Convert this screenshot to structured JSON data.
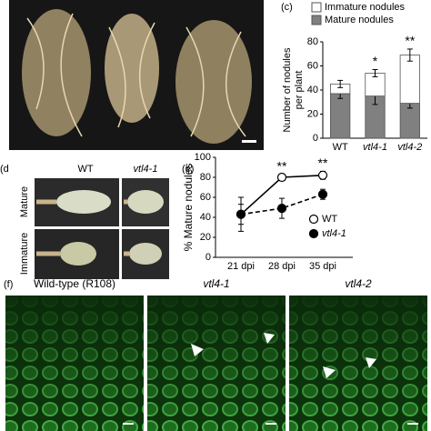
{
  "panels": {
    "c_label": "(c)",
    "d_label": "(d",
    "e_label": "(e)",
    "f_label": "(f)"
  },
  "panel_d": {
    "columns": [
      "WT",
      "vtl4-1"
    ],
    "rows": [
      "Mature",
      "Immature"
    ]
  },
  "panel_f": {
    "titles": [
      "Wild-type (R108)",
      "vtl4-1",
      "vtl4-2"
    ]
  },
  "chart_data": [
    {
      "type": "bar",
      "stacked": true,
      "ylabel": [
        "Number of nodules",
        "per plant"
      ],
      "categories": [
        "WT",
        "vtl4-1",
        "vtl4-2"
      ],
      "series": [
        {
          "name": "Mature nodules",
          "color": "#808080",
          "values": [
            37,
            35,
            29
          ],
          "errors": [
            4,
            7,
            4
          ]
        },
        {
          "name": "Immature nodules",
          "color": "#ffffff",
          "values": [
            8,
            19,
            40
          ],
          "errors": [
            3,
            3,
            5
          ]
        }
      ],
      "annotations": [
        {
          "category": "vtl4-1",
          "text": "*"
        },
        {
          "category": "vtl4-2",
          "text": "**"
        }
      ],
      "ylim": [
        0,
        80
      ],
      "yticks": [
        0,
        20,
        40,
        60,
        80
      ]
    },
    {
      "type": "line",
      "ylabel": "% Mature nodules",
      "categories": [
        "21 dpi",
        "28 dpi",
        "35 dpi"
      ],
      "series": [
        {
          "name": "WT",
          "color": "#000000",
          "marker": "open",
          "linestyle": "solid",
          "values": [
            43,
            80,
            82
          ],
          "errors": [
            17,
            3,
            4
          ]
        },
        {
          "name": "vtl4-1",
          "color": "#000000",
          "marker": "filled",
          "linestyle": "dashed",
          "values": [
            43,
            49,
            63
          ],
          "errors": [
            10,
            10,
            5
          ]
        }
      ],
      "annotations": [
        {
          "category": "28 dpi",
          "text": "**"
        },
        {
          "category": "35 dpi",
          "text": "**"
        }
      ],
      "ylim": [
        0,
        100
      ],
      "yticks": [
        0,
        20,
        40,
        60,
        80,
        100
      ],
      "legend": "lower right"
    }
  ]
}
